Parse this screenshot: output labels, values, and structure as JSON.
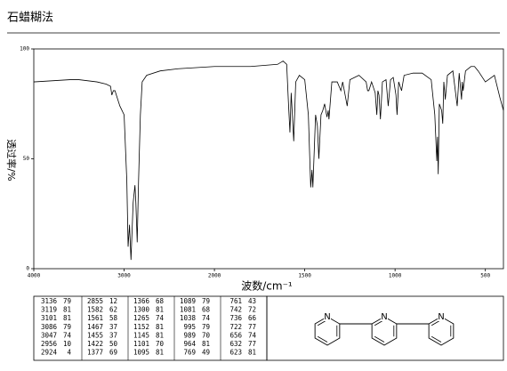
{
  "chart_data": {
    "type": "line",
    "title": "石蜡糊法",
    "x_label": "波数/cm⁻¹",
    "y_label": "透过率/%",
    "xlim": [
      4000,
      400
    ],
    "x_scale_break": 2000,
    "x_scale_ratio": 2,
    "xticks": [
      4000,
      3000,
      2000,
      1500,
      1000,
      500
    ],
    "ylim": [
      0,
      100
    ],
    "yticks": [
      0,
      50,
      100
    ],
    "color": "#000000",
    "x": [
      4000,
      3800,
      3600,
      3500,
      3400,
      3300,
      3200,
      3150,
      3136,
      3119,
      3101,
      3086,
      3047,
      3000,
      2970,
      2956,
      2940,
      2924,
      2900,
      2880,
      2870,
      2855,
      2840,
      2820,
      2800,
      2750,
      2600,
      2400,
      2200,
      2000,
      1800,
      1650,
      1620,
      1600,
      1590,
      1582,
      1575,
      1561,
      1550,
      1530,
      1500,
      1480,
      1467,
      1460,
      1455,
      1440,
      1430,
      1422,
      1410,
      1400,
      1390,
      1377,
      1370,
      1366,
      1350,
      1320,
      1300,
      1290,
      1265,
      1250,
      1200,
      1160,
      1152,
      1145,
      1130,
      1110,
      1101,
      1095,
      1089,
      1081,
      1070,
      1050,
      1038,
      1025,
      1010,
      995,
      989,
      980,
      964,
      950,
      900,
      850,
      800,
      780,
      769,
      765,
      761,
      755,
      742,
      736,
      730,
      722,
      710,
      680,
      656,
      645,
      632,
      628,
      623,
      610,
      580,
      560,
      540,
      500,
      450,
      420,
      400
    ],
    "values": [
      85,
      85.5,
      86,
      86,
      85.5,
      85,
      84,
      83,
      79,
      81,
      81,
      79,
      74,
      70,
      40,
      10,
      20,
      4,
      30,
      38,
      30,
      12,
      40,
      70,
      85,
      88,
      90,
      91,
      91.5,
      92,
      92,
      93,
      94.5,
      93,
      75,
      62,
      80,
      58,
      85,
      88,
      86,
      70,
      37,
      45,
      37,
      70,
      65,
      50,
      70,
      72,
      75,
      69,
      72,
      68,
      85,
      85,
      81,
      85,
      74,
      86,
      88,
      85,
      81,
      81,
      85,
      80,
      70,
      81,
      79,
      68,
      85,
      86,
      74,
      86,
      87,
      79,
      70,
      85,
      81,
      88,
      89,
      89,
      86,
      70,
      49,
      60,
      43,
      75,
      72,
      66,
      85,
      77,
      88,
      90,
      74,
      89,
      77,
      85,
      81,
      90,
      92,
      92,
      90,
      85,
      88,
      78,
      72
    ]
  },
  "peak_table": [
    [
      3136,
      79
    ],
    [
      3119,
      81
    ],
    [
      3101,
      81
    ],
    [
      3086,
      79
    ],
    [
      3047,
      74
    ],
    [
      2956,
      10
    ],
    [
      2924,
      4
    ],
    [
      2855,
      12
    ],
    [
      1582,
      62
    ],
    [
      1561,
      58
    ],
    [
      1467,
      37
    ],
    [
      1455,
      37
    ],
    [
      1422,
      50
    ],
    [
      1377,
      69
    ],
    [
      1366,
      68
    ],
    [
      1300,
      81
    ],
    [
      1265,
      74
    ],
    [
      1152,
      81
    ],
    [
      1145,
      81
    ],
    [
      1101,
      70
    ],
    [
      1095,
      81
    ],
    [
      1089,
      79
    ],
    [
      1081,
      68
    ],
    [
      1038,
      74
    ],
    [
      995,
      79
    ],
    [
      989,
      70
    ],
    [
      964,
      81
    ],
    [
      769,
      49
    ],
    [
      761,
      43
    ],
    [
      742,
      72
    ],
    [
      736,
      66
    ],
    [
      722,
      77
    ],
    [
      656,
      74
    ],
    [
      632,
      77
    ],
    [
      623,
      81
    ]
  ],
  "structure": {
    "atoms": [
      "N",
      "N",
      "N"
    ]
  }
}
